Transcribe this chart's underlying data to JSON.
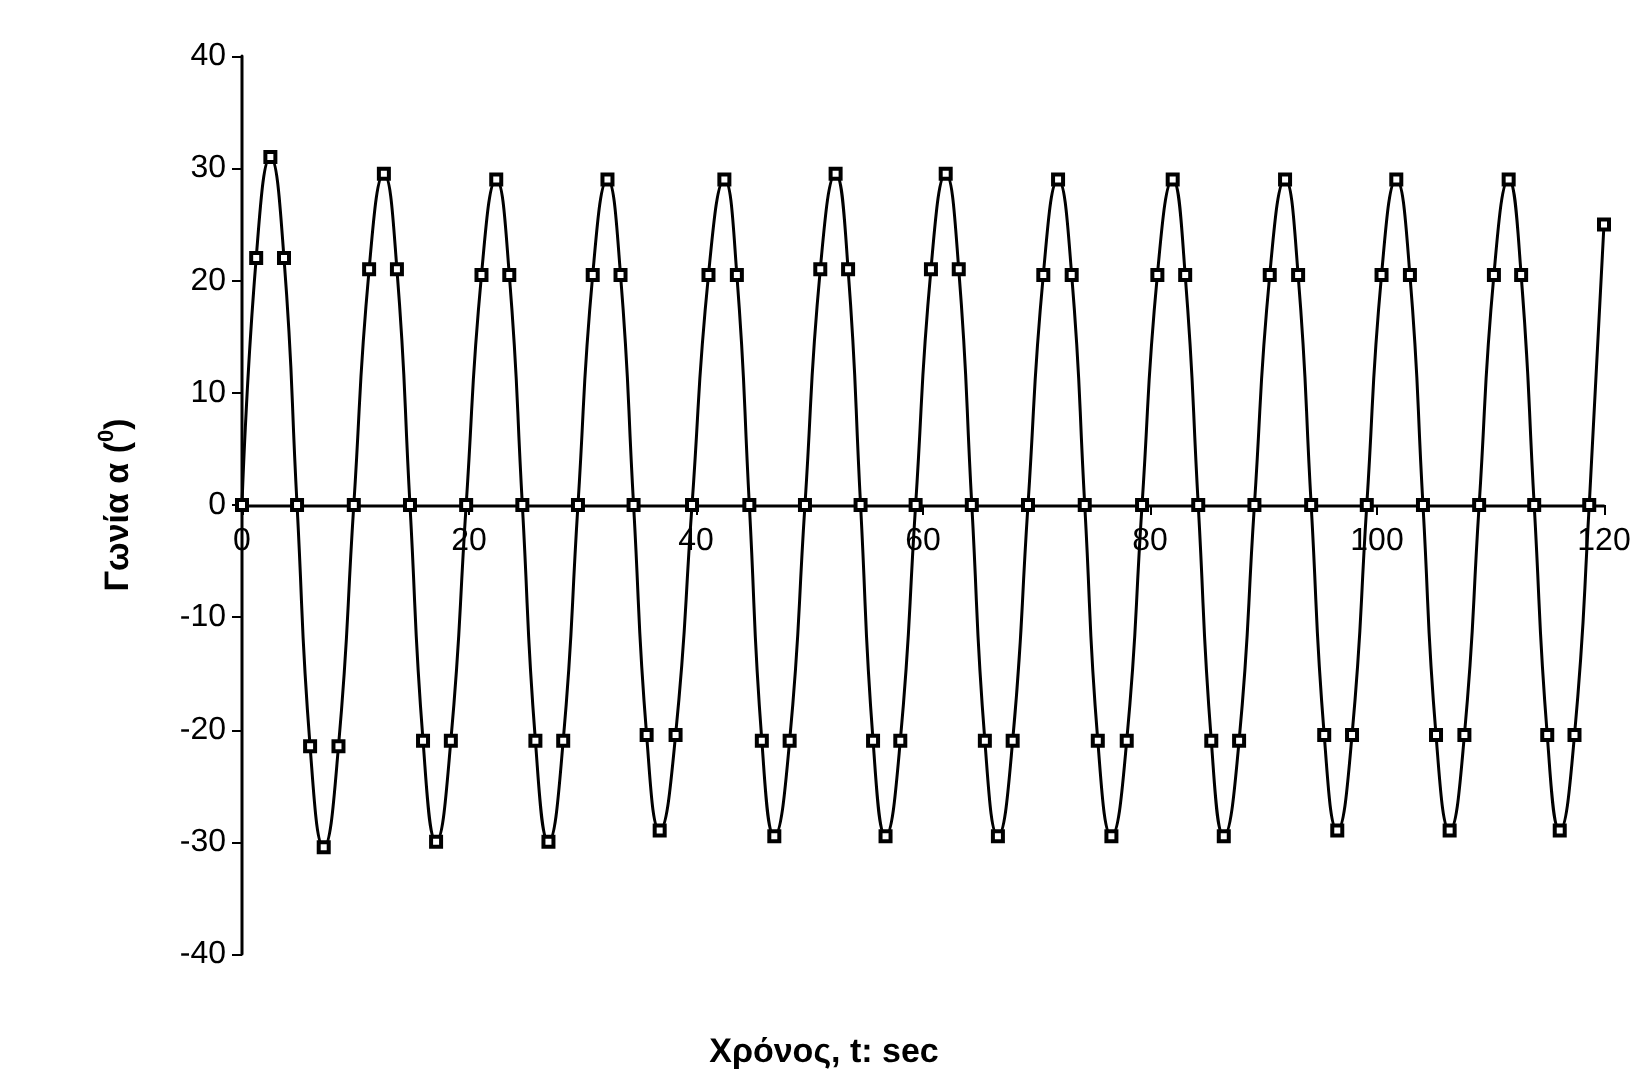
{
  "chart_data": {
    "type": "line",
    "xlabel": "Χρόνος, t: sec",
    "ylabel": "Γωνία α ($^{0}$)",
    "xlim": [
      0,
      120
    ],
    "xticks": [
      0,
      20,
      40,
      60,
      80,
      100,
      120
    ],
    "ylim": [
      -40,
      40
    ],
    "yticks": [
      -40,
      -30,
      -20,
      -10,
      0,
      10,
      20,
      30,
      40
    ],
    "grid": false,
    "marker": "square",
    "line_style": "solid",
    "series": [
      {
        "color": "#000000",
        "x": [
          0,
          1.25,
          2.5,
          3.7,
          4.85,
          6.0,
          7.2,
          8.5,
          9.85,
          11.2,
          12.5,
          13.65,
          14.8,
          15.95,
          17.1,
          18.4,
          19.75,
          21.1,
          22.4,
          23.55,
          24.7,
          25.85,
          27.0,
          28.3,
          29.6,
          30.9,
          32.2,
          33.35,
          34.5,
          35.65,
          36.8,
          38.2,
          39.65,
          41.1,
          42.5,
          43.6,
          44.7,
          45.8,
          46.9,
          48.25,
          49.6,
          50.95,
          52.3,
          53.4,
          54.5,
          55.6,
          56.7,
          58.0,
          59.35,
          60.7,
          62.0,
          63.15,
          64.3,
          65.45,
          66.6,
          67.9,
          69.25,
          70.6,
          71.9,
          73.1,
          74.25,
          75.4,
          76.6,
          77.95,
          79.3,
          80.65,
          82.0,
          83.1,
          84.25,
          85.4,
          86.5,
          87.85,
          89.2,
          90.55,
          91.9,
          93.05,
          94.2,
          95.35,
          96.5,
          97.8,
          99.1,
          100.4,
          101.7,
          102.9,
          104.05,
          105.2,
          106.4,
          107.7,
          109.0,
          110.3,
          111.6,
          112.7,
          113.85,
          115.0,
          116.1,
          117.4,
          118.7,
          120
        ],
        "values": [
          0,
          22,
          31,
          22,
          0,
          -21.5,
          -30.5,
          -21.5,
          0,
          21,
          29.5,
          21,
          0,
          -21,
          -30,
          -21,
          0,
          20.5,
          29,
          20.5,
          0,
          -21,
          -30,
          -21,
          0,
          20.5,
          29,
          20.5,
          0,
          -20.5,
          -29,
          -20.5,
          0,
          20.5,
          29,
          20.5,
          0,
          -21,
          -29.5,
          -21,
          0,
          21,
          29.5,
          21,
          0,
          -21,
          -29.5,
          -21,
          0,
          21,
          29.5,
          21,
          0,
          -21,
          -29.5,
          -21,
          0,
          20.5,
          29,
          20.5,
          0,
          -21,
          -29.5,
          -21,
          0,
          20.5,
          29,
          20.5,
          0,
          -21,
          -29.5,
          -21,
          0,
          20.5,
          29,
          20.5,
          0,
          -20.5,
          -29,
          -20.5,
          0,
          20.5,
          29,
          20.5,
          0,
          -20.5,
          -29,
          -20.5,
          0,
          20.5,
          29,
          20.5,
          0,
          -20.5,
          -29,
          -20.5,
          0,
          25
        ]
      }
    ]
  }
}
